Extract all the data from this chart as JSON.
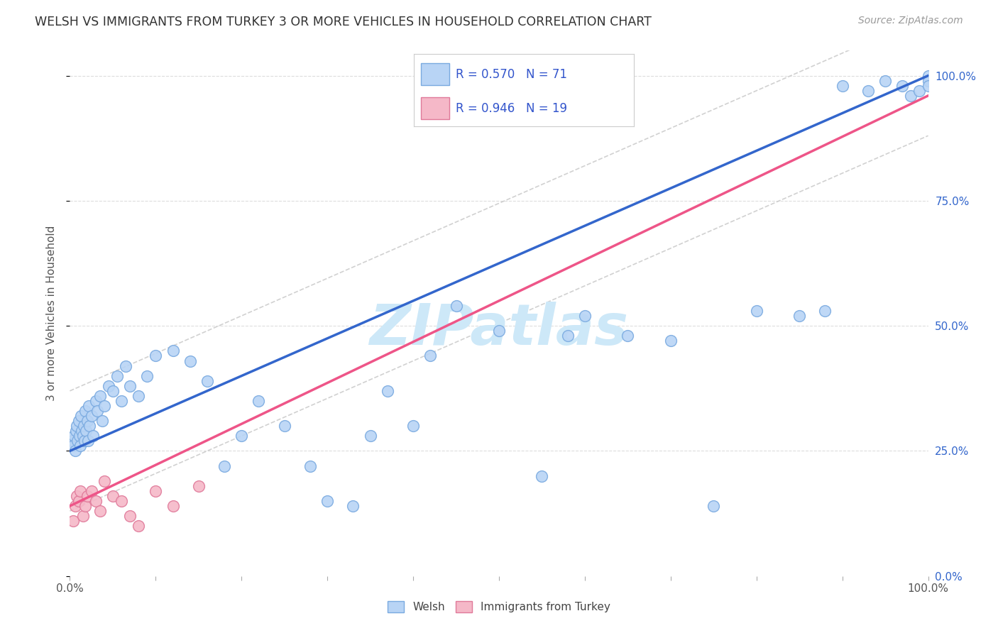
{
  "title": "WELSH VS IMMIGRANTS FROM TURKEY 3 OR MORE VEHICLES IN HOUSEHOLD CORRELATION CHART",
  "source": "Source: ZipAtlas.com",
  "ylabel": "3 or more Vehicles in Household",
  "welsh_R": 0.57,
  "welsh_N": 71,
  "turkey_R": 0.946,
  "turkey_N": 19,
  "welsh_color": "#b8d4f5",
  "welsh_edge": "#7aaae0",
  "turkey_color": "#f5b8c8",
  "turkey_edge": "#e07a9a",
  "trendline_welsh_color": "#3366cc",
  "trendline_turkey_color": "#ee5588",
  "trendline_ci_color": "#cccccc",
  "legend_text_color": "#3355cc",
  "background_color": "#ffffff",
  "grid_color": "#dddddd",
  "title_color": "#333333",
  "source_color": "#999999",
  "axis_label_color": "#555555",
  "right_tick_color": "#3366cc",
  "bottom_tick_color": "#555555",
  "welsh_x": [
    0.3,
    0.4,
    0.5,
    0.6,
    0.7,
    0.8,
    0.9,
    1.0,
    1.1,
    1.2,
    1.3,
    1.4,
    1.5,
    1.6,
    1.7,
    1.8,
    1.9,
    2.0,
    2.1,
    2.2,
    2.3,
    2.5,
    2.7,
    3.0,
    3.2,
    3.5,
    3.8,
    4.0,
    4.5,
    5.0,
    5.5,
    6.0,
    6.5,
    7.0,
    8.0,
    9.0,
    10.0,
    12.0,
    14.0,
    16.0,
    18.0,
    20.0,
    22.0,
    25.0,
    28.0,
    30.0,
    33.0,
    35.0,
    37.0,
    40.0,
    42.0,
    45.0,
    50.0,
    55.0,
    58.0,
    60.0,
    65.0,
    70.0,
    75.0,
    80.0,
    85.0,
    88.0,
    90.0,
    93.0,
    95.0,
    97.0,
    98.0,
    99.0,
    100.0,
    100.0,
    100.0
  ],
  "welsh_y": [
    27,
    26,
    28,
    25,
    29,
    30,
    27,
    31,
    28,
    26,
    32,
    29,
    28,
    30,
    27,
    33,
    29,
    31,
    27,
    34,
    30,
    32,
    28,
    35,
    33,
    36,
    31,
    34,
    38,
    37,
    40,
    35,
    42,
    38,
    36,
    40,
    44,
    45,
    43,
    39,
    22,
    28,
    35,
    30,
    22,
    15,
    14,
    28,
    37,
    30,
    44,
    54,
    49,
    20,
    48,
    52,
    48,
    47,
    14,
    53,
    52,
    53,
    98,
    97,
    99,
    98,
    96,
    97,
    100,
    99,
    98
  ],
  "turkey_x": [
    0.4,
    0.6,
    0.8,
    1.0,
    1.2,
    1.5,
    1.8,
    2.0,
    2.5,
    3.0,
    3.5,
    4.0,
    5.0,
    6.0,
    7.0,
    8.0,
    10.0,
    12.0,
    15.0
  ],
  "turkey_y": [
    11,
    14,
    16,
    15,
    17,
    12,
    14,
    16,
    17,
    15,
    13,
    19,
    16,
    15,
    12,
    10,
    17,
    14,
    18
  ]
}
